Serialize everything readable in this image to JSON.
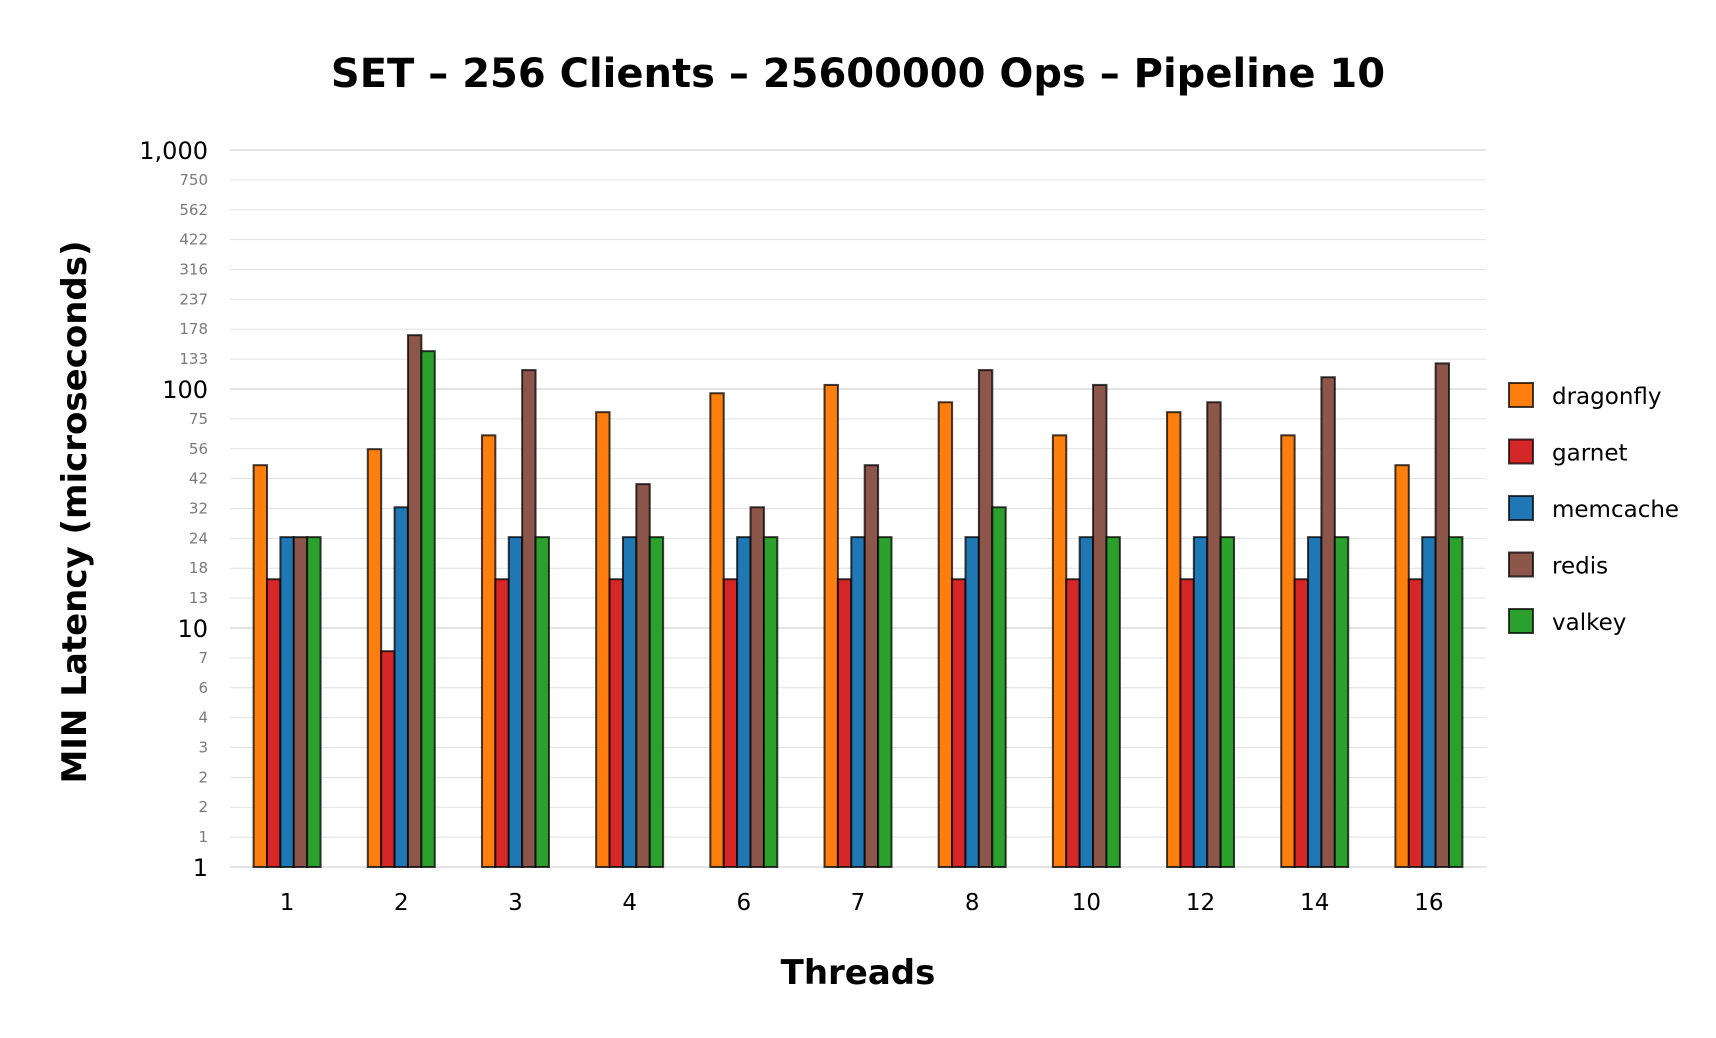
{
  "chart_data": {
    "type": "bar",
    "title": "SET – 256 Clients – 25600000 Ops – Pipeline 10",
    "xlabel": "Threads",
    "ylabel": "MIN Latency (microseconds)",
    "y_scale": "log",
    "ylim": [
      1,
      1000
    ],
    "grid": true,
    "legend_position": "right",
    "y_ticks": [
      {
        "value": 1,
        "label": "1",
        "major": true
      },
      {
        "value": 1.3335,
        "label": "1",
        "major": false
      },
      {
        "value": 1.7783,
        "label": "2",
        "major": false
      },
      {
        "value": 2.3714,
        "label": "2",
        "major": false
      },
      {
        "value": 3.1623,
        "label": "3",
        "major": false
      },
      {
        "value": 4.217,
        "label": "4",
        "major": false
      },
      {
        "value": 5.6234,
        "label": "6",
        "major": false
      },
      {
        "value": 7.4989,
        "label": "7",
        "major": false
      },
      {
        "value": 10,
        "label": "10",
        "major": true
      },
      {
        "value": 13.335,
        "label": "13",
        "major": false
      },
      {
        "value": 17.783,
        "label": "18",
        "major": false
      },
      {
        "value": 23.714,
        "label": "24",
        "major": false
      },
      {
        "value": 31.623,
        "label": "32",
        "major": false
      },
      {
        "value": 42.17,
        "label": "42",
        "major": false
      },
      {
        "value": 56.234,
        "label": "56",
        "major": false
      },
      {
        "value": 74.989,
        "label": "75",
        "major": false
      },
      {
        "value": 100,
        "label": "100",
        "major": true
      },
      {
        "value": 133.35,
        "label": "133",
        "major": false
      },
      {
        "value": 177.83,
        "label": "178",
        "major": false
      },
      {
        "value": 237.14,
        "label": "237",
        "major": false
      },
      {
        "value": 316.23,
        "label": "316",
        "major": false
      },
      {
        "value": 421.7,
        "label": "422",
        "major": false
      },
      {
        "value": 562.34,
        "label": "562",
        "major": false
      },
      {
        "value": 749.89,
        "label": "750",
        "major": false
      },
      {
        "value": 1000,
        "label": "1,000",
        "major": true
      }
    ],
    "categories": [
      "1",
      "2",
      "3",
      "4",
      "6",
      "7",
      "8",
      "10",
      "12",
      "14",
      "16"
    ],
    "series": [
      {
        "name": "dragonfly",
        "color": "#ff7f0e",
        "values": [
          48,
          56,
          64,
          80,
          96,
          104,
          88,
          64,
          80,
          64,
          48
        ]
      },
      {
        "name": "garnet",
        "color": "#d62728",
        "values": [
          16,
          8,
          16,
          16,
          16,
          16,
          16,
          16,
          16,
          16,
          16
        ]
      },
      {
        "name": "memcache",
        "color": "#1f77b4",
        "values": [
          24,
          32,
          24,
          24,
          24,
          24,
          24,
          24,
          24,
          24,
          24
        ]
      },
      {
        "name": "redis",
        "color": "#8c564b",
        "values": [
          24,
          168,
          120,
          40,
          32,
          48,
          120,
          104,
          88,
          112,
          128
        ]
      },
      {
        "name": "valkey",
        "color": "#2ca02c",
        "values": [
          24,
          144,
          24,
          24,
          24,
          24,
          32,
          24,
          24,
          24,
          24
        ]
      }
    ]
  }
}
